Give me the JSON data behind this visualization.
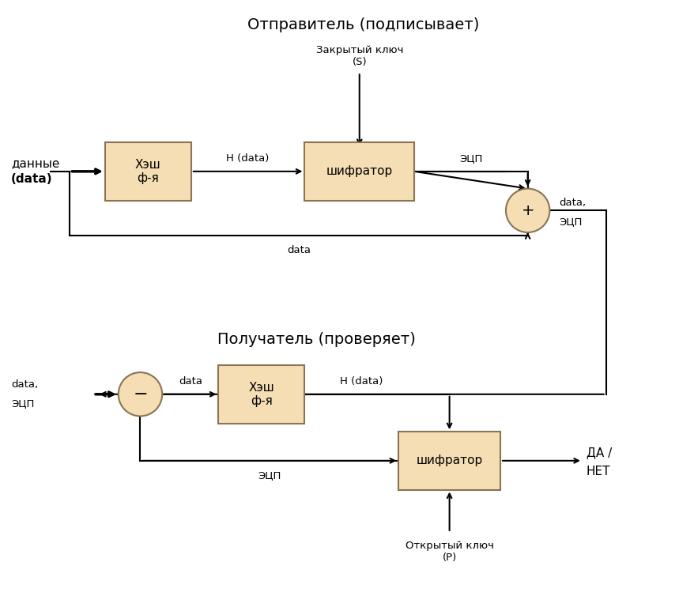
{
  "title_top": "Отправитель (подписывает)",
  "title_bottom": "Получатель (проверяет)",
  "box_facecolor": "#F5DEB3",
  "box_edgecolor": "#8B7355",
  "circle_facecolor": "#F5DEB3",
  "circle_edgecolor": "#8B7355",
  "text_color": "#000000",
  "bg_color": "#FFFFFF",
  "top_hash_label": "Хэш\nф-я",
  "top_cipher_label": "шифратор",
  "bottom_hash_label": "Хэш\nф-я",
  "bottom_cipher_label": "шифратор",
  "closed_key_label": "Закрытый ключ\n(S)",
  "open_key_label": "Открытый ключ\n(P)",
  "h_data_top": "H (data)",
  "ecp_top": "ЭЦП",
  "data_middle": "data",
  "h_data_bottom": "H (data)",
  "ecp_bottom": "ЭЦП",
  "yes_no": "ДА /\nНЕТ",
  "data_label2": "data"
}
